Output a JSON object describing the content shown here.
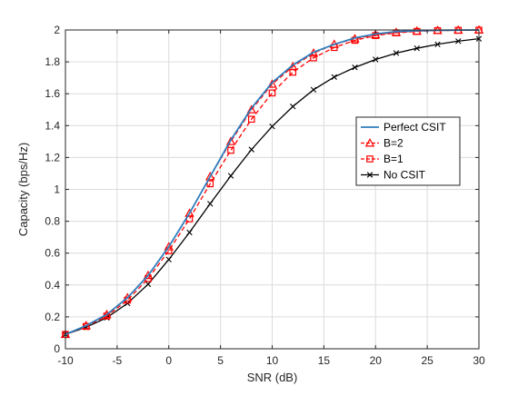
{
  "chart_data": {
    "type": "line",
    "xlabel": "SNR (dB)",
    "ylabel": "Capacity (bps/Hz)",
    "xlim": [
      -10,
      30
    ],
    "ylim": [
      0,
      2
    ],
    "xticks": [
      -10,
      -5,
      0,
      5,
      10,
      15,
      20,
      25,
      30
    ],
    "yticks": [
      0,
      0.2,
      0.4,
      0.6,
      0.8,
      1,
      1.2,
      1.4,
      1.6,
      1.8,
      2
    ],
    "grid": true,
    "legend_position": "right",
    "series": [
      {
        "name": "Perfect CSIT",
        "color": "#2e7ebd",
        "line": "solid",
        "marker": "none",
        "x": [
          -10,
          -8,
          -6,
          -4,
          -2,
          0,
          2,
          4,
          6,
          8,
          10,
          12,
          14,
          16,
          18,
          20,
          22,
          24,
          26,
          28,
          30
        ],
        "y": [
          0.09,
          0.145,
          0.215,
          0.32,
          0.46,
          0.64,
          0.85,
          1.08,
          1.31,
          1.51,
          1.67,
          1.78,
          1.86,
          1.91,
          1.95,
          1.975,
          1.99,
          1.995,
          1.998,
          1.999,
          2.0
        ]
      },
      {
        "name": "B=2",
        "color": "#ff0000",
        "line": "dashed",
        "marker": "triangle",
        "x": [
          -10,
          -8,
          -6,
          -4,
          -2,
          0,
          2,
          4,
          6,
          8,
          10,
          12,
          14,
          16,
          18,
          20,
          22,
          24,
          26,
          28,
          30
        ],
        "y": [
          0.09,
          0.145,
          0.215,
          0.32,
          0.46,
          0.64,
          0.85,
          1.08,
          1.3,
          1.5,
          1.66,
          1.77,
          1.855,
          1.91,
          1.945,
          1.97,
          1.985,
          1.993,
          1.997,
          1.999,
          2.0
        ]
      },
      {
        "name": "B=1",
        "color": "#ff0000",
        "line": "dashed",
        "marker": "square",
        "x": [
          -10,
          -8,
          -6,
          -4,
          -2,
          0,
          2,
          4,
          6,
          8,
          10,
          12,
          14,
          16,
          18,
          20,
          22,
          24,
          26,
          28,
          30
        ],
        "y": [
          0.09,
          0.14,
          0.205,
          0.305,
          0.44,
          0.615,
          0.815,
          1.035,
          1.245,
          1.44,
          1.605,
          1.735,
          1.825,
          1.89,
          1.935,
          1.965,
          1.982,
          1.991,
          1.996,
          1.998,
          1.999
        ]
      },
      {
        "name": "No CSIT",
        "color": "#000000",
        "line": "solid",
        "marker": "x",
        "x": [
          -10,
          -8,
          -6,
          -4,
          -2,
          0,
          2,
          4,
          6,
          8,
          10,
          12,
          14,
          16,
          18,
          20,
          22,
          24,
          26,
          28,
          30
        ],
        "y": [
          0.09,
          0.135,
          0.195,
          0.285,
          0.405,
          0.56,
          0.73,
          0.91,
          1.085,
          1.25,
          1.395,
          1.52,
          1.625,
          1.705,
          1.765,
          1.815,
          1.855,
          1.885,
          1.91,
          1.93,
          1.945
        ]
      }
    ]
  }
}
